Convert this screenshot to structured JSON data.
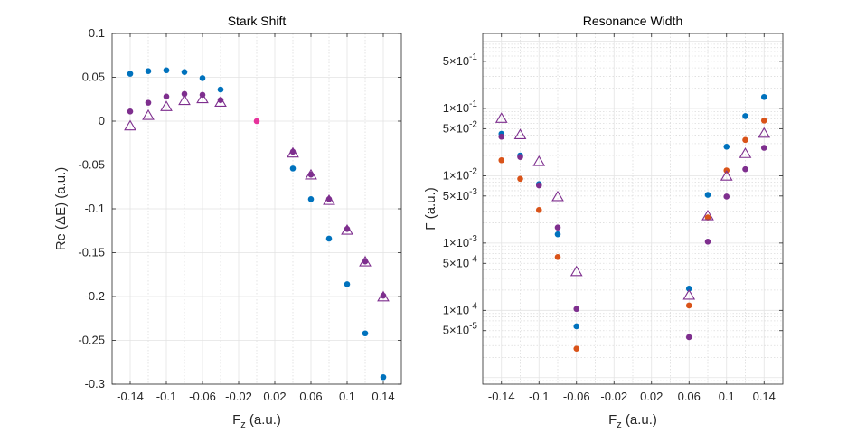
{
  "chart_data": [
    {
      "type": "scatter",
      "title": "Stark Shift",
      "xlabel": "F",
      "xlabel_sub": "z",
      "xlabel_units": " (a.u.)",
      "ylabel": "Re (ΔE) (a.u.)",
      "xscale": "linear",
      "yscale": "linear",
      "xlim": [
        -0.16,
        0.16
      ],
      "ylim": [
        -0.3,
        0.1
      ],
      "xticks": [
        -0.14,
        -0.1,
        -0.06,
        -0.02,
        0.02,
        0.06,
        0.1,
        0.14
      ],
      "xtick_labels": [
        "-0.14",
        "-0.1",
        "-0.06",
        "-0.02",
        "0.02",
        "0.06",
        "0.1",
        "0.14"
      ],
      "yticks": [
        -0.3,
        -0.25,
        -0.2,
        -0.15,
        -0.1,
        -0.05,
        0,
        0.05,
        0.1
      ],
      "ytick_labels": [
        "-0.3",
        "-0.25",
        "-0.2",
        "-0.15",
        "-0.1",
        "-0.05",
        "0",
        "0.05",
        "0.1"
      ],
      "x_minor": [
        -0.12,
        -0.08,
        -0.04,
        0,
        0.04,
        0.08,
        0.12
      ],
      "series": [
        {
          "name": "blue dots",
          "marker": "dot",
          "color": "#0072BD",
          "x": [
            -0.14,
            -0.12,
            -0.1,
            -0.08,
            -0.06,
            -0.04,
            0.04,
            0.06,
            0.08,
            0.1,
            0.12,
            0.14
          ],
          "y": [
            0.054,
            0.057,
            0.058,
            0.056,
            0.049,
            0.036,
            -0.054,
            -0.089,
            -0.134,
            -0.186,
            -0.242,
            -0.292
          ]
        },
        {
          "name": "purple dots",
          "marker": "dot",
          "color": "#7E2F8E",
          "x": [
            -0.14,
            -0.12,
            -0.1,
            -0.08,
            -0.06,
            -0.04,
            0.04,
            0.06,
            0.08,
            0.1,
            0.12,
            0.14
          ],
          "y": [
            0.011,
            0.021,
            0.028,
            0.031,
            0.03,
            0.024,
            -0.035,
            -0.061,
            -0.089,
            -0.123,
            -0.16,
            -0.199
          ]
        },
        {
          "name": "purple triangles",
          "marker": "triangle",
          "color": "#7E2F8E",
          "x": [
            -0.14,
            -0.12,
            -0.1,
            -0.08,
            -0.06,
            -0.04,
            0.04,
            0.06,
            0.08,
            0.1,
            0.12,
            0.14
          ],
          "y": [
            -0.006,
            0.006,
            0.016,
            0.023,
            0.025,
            0.021,
            -0.037,
            -0.062,
            -0.091,
            -0.125,
            -0.161,
            -0.201
          ]
        },
        {
          "name": "pink dot",
          "marker": "dot",
          "color": "#E6329B",
          "x": [
            0.0
          ],
          "y": [
            0.0
          ]
        }
      ]
    },
    {
      "type": "scatter",
      "title": "Resonance Width",
      "xlabel": "F",
      "xlabel_sub": "z",
      "xlabel_units": " (a.u.)",
      "ylabel": "Γ (a.u.)",
      "xscale": "linear",
      "yscale": "log",
      "xlim": [
        -0.16,
        0.16
      ],
      "ylim": [
        8e-06,
        1.3
      ],
      "xticks": [
        -0.14,
        -0.1,
        -0.06,
        -0.02,
        0.02,
        0.06,
        0.1,
        0.14
      ],
      "xtick_labels": [
        "-0.14",
        "-0.1",
        "-0.06",
        "-0.02",
        "0.02",
        "0.06",
        "0.1",
        "0.14"
      ],
      "x_minor": [
        -0.12,
        -0.08,
        -0.04,
        0,
        0.04,
        0.08,
        0.12
      ],
      "yticks": [
        {
          "value": 0.5,
          "mantissa": "5",
          "exponent": "-1"
        },
        {
          "value": 0.1,
          "mantissa": "1",
          "exponent": "-1"
        },
        {
          "value": 0.05,
          "mantissa": "5",
          "exponent": "-2"
        },
        {
          "value": 0.01,
          "mantissa": "1",
          "exponent": "-2"
        },
        {
          "value": 0.005,
          "mantissa": "5",
          "exponent": "-3"
        },
        {
          "value": 0.001,
          "mantissa": "1",
          "exponent": "-3"
        },
        {
          "value": 0.0005,
          "mantissa": "5",
          "exponent": "-4"
        },
        {
          "value": 0.0001,
          "mantissa": "1",
          "exponent": "-4"
        },
        {
          "value": 5e-05,
          "mantissa": "5",
          "exponent": "-5"
        }
      ],
      "ytick_times": "×",
      "series": [
        {
          "name": "blue dots",
          "marker": "dot",
          "color": "#0072BD",
          "x": [
            -0.14,
            -0.12,
            -0.1,
            -0.08,
            -0.06,
            0.06,
            0.08,
            0.1,
            0.12,
            0.14
          ],
          "y": [
            0.042,
            0.02,
            0.0075,
            0.00135,
            5.8e-05,
            0.00021,
            0.0052,
            0.027,
            0.077,
            0.148
          ]
        },
        {
          "name": "orange dots",
          "marker": "dot",
          "color": "#D95319",
          "x": [
            -0.14,
            -0.12,
            -0.1,
            -0.08,
            -0.06,
            0.06,
            0.08,
            0.1,
            0.12,
            0.14
          ],
          "y": [
            0.017,
            0.009,
            0.0031,
            0.00062,
            2.7e-05,
            0.000118,
            0.0024,
            0.012,
            0.034,
            0.066
          ]
        },
        {
          "name": "purple dots",
          "marker": "dot",
          "color": "#7E2F8E",
          "x": [
            -0.14,
            -0.12,
            -0.1,
            -0.08,
            -0.06,
            0.06,
            0.08,
            0.1,
            0.12,
            0.14
          ],
          "y": [
            0.038,
            0.019,
            0.0072,
            0.0017,
            0.000105,
            4e-05,
            0.00105,
            0.0049,
            0.0125,
            0.026
          ]
        },
        {
          "name": "purple triangles",
          "marker": "triangle",
          "color": "#7E2F8E",
          "x": [
            -0.14,
            -0.12,
            -0.1,
            -0.08,
            -0.06,
            0.06,
            0.08,
            0.1,
            0.12,
            0.14
          ],
          "y": [
            0.07,
            0.04,
            0.016,
            0.0048,
            0.00037,
            0.000165,
            0.0025,
            0.0097,
            0.021,
            0.042
          ]
        }
      ]
    }
  ]
}
